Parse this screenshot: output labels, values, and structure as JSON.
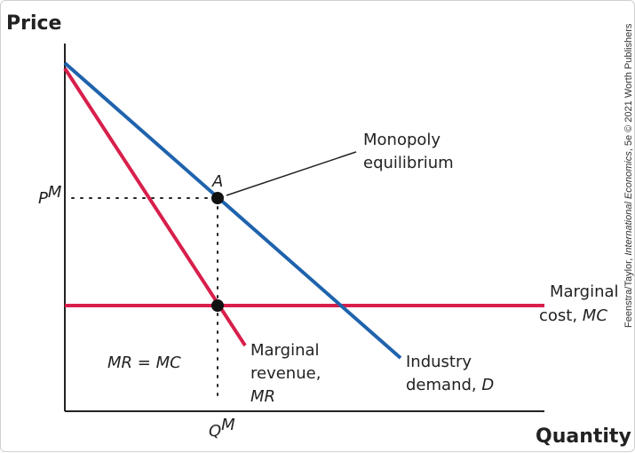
{
  "axes": {
    "y_title": "Price",
    "x_title": "Quantity"
  },
  "ticks": {
    "pm_main": "P",
    "pm_sup": "M",
    "qm_main": "Q",
    "qm_sup": "M"
  },
  "points": {
    "a_label": "A"
  },
  "labels": {
    "monopoly_line1": "Monopoly",
    "monopoly_line2": "equilibrium",
    "mr_eq_mc": "MR = MC",
    "mc_line1": "Marginal",
    "mc_line2_text": "cost, ",
    "mc_line2_italic": "MC",
    "mr_line1": "Marginal",
    "mr_line2": "revenue,",
    "mr_line3_italic": "MR",
    "d_line1": "Industry",
    "d_line2_text": "demand, ",
    "d_line2_italic": "D"
  },
  "credit": {
    "prefix": "Feenstra/Taylor, ",
    "title_italic": "International Economics",
    "suffix": ", 5e © 2021 Worth Publishers"
  },
  "colors": {
    "demand": "#1f63ad",
    "marginal_revenue": "#d81f4b",
    "marginal_cost": "#d81f4b",
    "axis": "#222222",
    "point": "#111111"
  }
}
